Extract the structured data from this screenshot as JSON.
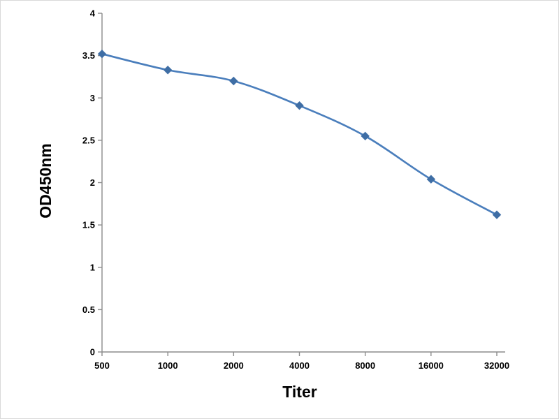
{
  "chart_data": {
    "type": "line",
    "title": "",
    "xlabel": "Titer",
    "ylabel": "OD450nm",
    "categories": [
      "500",
      "1000",
      "2000",
      "4000",
      "8000",
      "16000",
      "32000"
    ],
    "series": [
      {
        "name": "OD450nm",
        "values": [
          3.52,
          3.33,
          3.2,
          2.91,
          2.55,
          2.04,
          1.62
        ]
      }
    ],
    "ylim": [
      0,
      4
    ],
    "yticks": [
      0,
      0.5,
      1,
      1.5,
      2,
      2.5,
      3,
      3.5,
      4
    ],
    "grid": false,
    "legend": "none",
    "marker": "diamond",
    "line_color": "#4a7ebc",
    "marker_color": "#3f6ea5",
    "axis_color": "#8c8c8c",
    "text_color": "#000000"
  }
}
